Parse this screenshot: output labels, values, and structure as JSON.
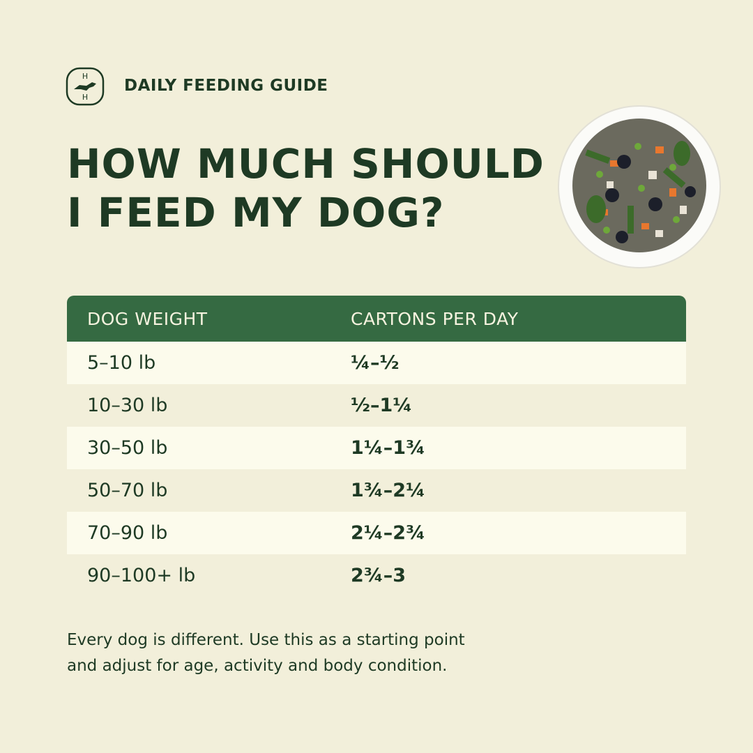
{
  "logo": {
    "top": "H",
    "bottom": "H"
  },
  "header": {
    "label": "DAILY FEEDING GUIDE"
  },
  "title": [
    "HOW MUCH SHOULD",
    "I FEED MY DOG?"
  ],
  "table": {
    "columns": [
      "DOG WEIGHT",
      "CARTONS PER DAY"
    ],
    "rows": [
      [
        "5–10 lb",
        "¼–½"
      ],
      [
        "10–30 lb",
        "½–1¼"
      ],
      [
        "30–50 lb",
        "1¼–1¾"
      ],
      [
        "50–70 lb",
        "1¾–2¼"
      ],
      [
        "70–90 lb",
        "2¼–2¾"
      ],
      [
        "90–100+ lb",
        "2¾–3"
      ]
    ]
  },
  "note": [
    "Every dog is different. Use this as a starting point",
    "and adjust for age, activity and body condition."
  ]
}
